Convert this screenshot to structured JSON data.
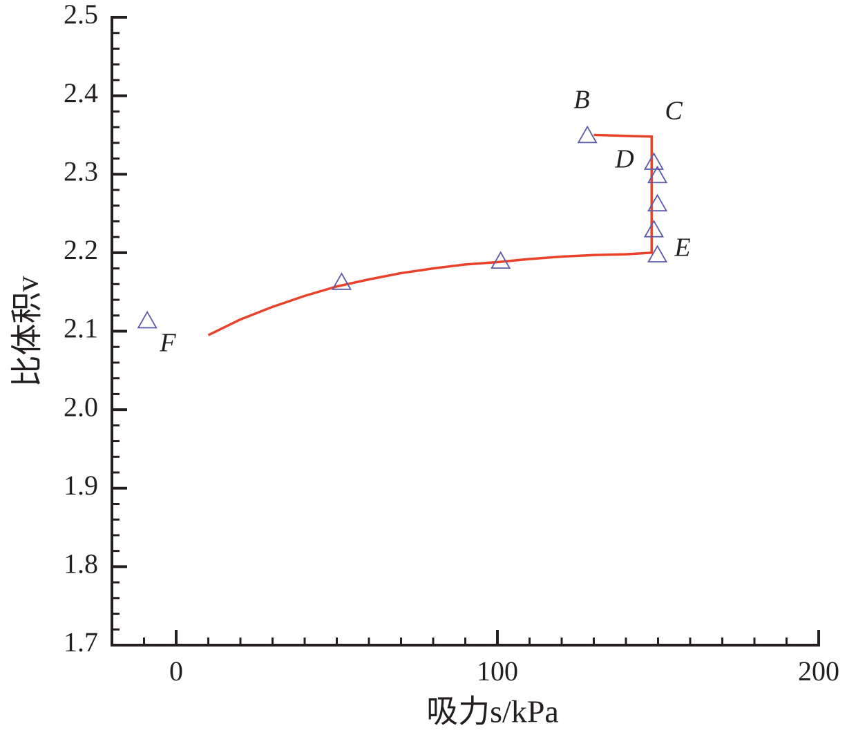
{
  "chart_data": {
    "type": "line_scatter",
    "xlabel": "吸力s/kPa",
    "ylabel": "比体积v",
    "xlim": [
      -20,
      200
    ],
    "ylim": [
      1.7,
      2.5
    ],
    "xticks": [
      0,
      100,
      200
    ],
    "yticks": [
      {
        "value": 1.7,
        "label": "1.7"
      },
      {
        "value": 1.8,
        "label": "1.8"
      },
      {
        "value": 1.9,
        "label": "1.9"
      },
      {
        "value": 2.0,
        "label": "2.0"
      },
      {
        "value": 2.1,
        "label": "2.1"
      },
      {
        "value": 2.2,
        "label": "2.2"
      },
      {
        "value": 2.3,
        "label": "2.3"
      },
      {
        "value": 2.4,
        "label": "2.4"
      },
      {
        "value": 2.5,
        "label": "2.5"
      }
    ],
    "x_minor_ticks": [
      -10,
      10,
      20,
      30,
      40,
      50,
      60,
      70,
      80,
      90,
      110,
      120,
      130,
      140,
      150,
      160,
      170,
      180,
      190
    ],
    "y_minor_ticks": [
      1.72,
      1.74,
      1.76,
      1.78,
      1.82,
      1.84,
      1.86,
      1.88,
      1.92,
      1.94,
      1.96,
      1.98,
      2.02,
      2.04,
      2.06,
      2.08,
      2.12,
      2.14,
      2.16,
      2.18,
      2.22,
      2.24,
      2.26,
      2.28,
      2.32,
      2.34,
      2.36,
      2.38,
      2.42,
      2.44,
      2.46,
      2.48
    ],
    "line": {
      "color": "#e8432a",
      "x": [
        10,
        20,
        30,
        40,
        50,
        60,
        70,
        80,
        90,
        100,
        110,
        120,
        130,
        140,
        148,
        148,
        130
      ],
      "values": [
        2.095,
        2.115,
        2.131,
        2.145,
        2.157,
        2.166,
        2.174,
        2.18,
        2.185,
        2.188,
        2.192,
        2.195,
        2.197,
        2.198,
        2.2,
        2.348,
        2.35
      ]
    },
    "points": {
      "color": "#5a5aa8",
      "x": [
        -9,
        51.5,
        101,
        128,
        149.8,
        148.7,
        149.8,
        149.8,
        148.7
      ],
      "values": [
        2.113,
        2.162,
        2.189,
        2.349,
        2.197,
        2.229,
        2.262,
        2.298,
        2.315
      ]
    },
    "annotations": [
      "B",
      "C",
      "D",
      "E",
      "F"
    ]
  }
}
